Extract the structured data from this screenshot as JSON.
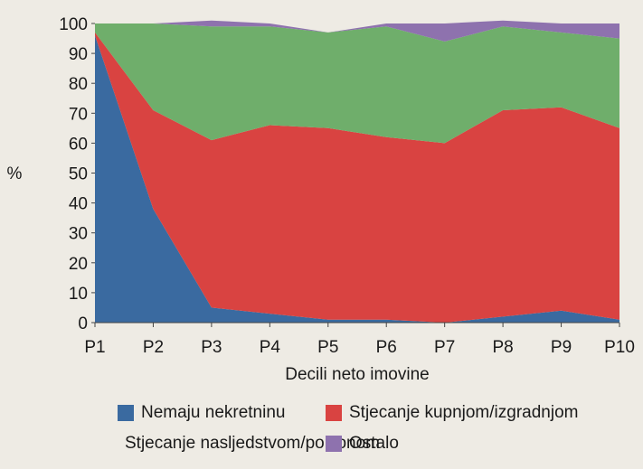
{
  "chart_data": {
    "type": "area",
    "stacked": true,
    "categories": [
      "P1",
      "P2",
      "P3",
      "P4",
      "P5",
      "P6",
      "P7",
      "P8",
      "P9",
      "P10"
    ],
    "series": [
      {
        "name": "Nemaju nekretninu",
        "color": "#3a6aa0",
        "values": [
          96,
          38,
          5,
          3,
          1,
          1,
          0,
          2,
          4,
          1
        ]
      },
      {
        "name": "Stjecanje kupnjom/izgradnjom",
        "color": "#d94341",
        "values": [
          1,
          33,
          56,
          63,
          64,
          61,
          60,
          69,
          68,
          64
        ]
      },
      {
        "name": "Stjecanje nasljedstvom/poklonom",
        "color": "#6fae6b",
        "values": [
          3,
          29,
          38,
          33,
          32,
          37,
          34,
          28,
          25,
          30
        ]
      },
      {
        "name": "Ostalo",
        "color": "#8e72ae",
        "values": [
          0,
          0,
          2,
          1,
          0,
          1,
          6,
          2,
          3,
          5
        ]
      }
    ],
    "ylim": [
      0,
      100
    ],
    "yticks": [
      "0",
      "10",
      "20",
      "30",
      "40",
      "50",
      "60",
      "70",
      "80",
      "90",
      "100"
    ],
    "ylabel": "%",
    "xlabel": "Decili neto imovine",
    "grid": false,
    "legend_position": "bottom"
  }
}
